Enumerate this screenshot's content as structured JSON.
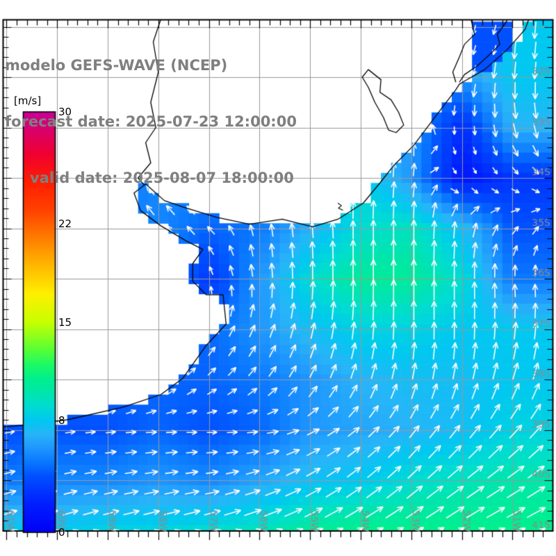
{
  "title": {
    "line1": "modelo GEFS-WAVE (NCEP)",
    "line2": "forecast date: 2025-07-23 12:00:00",
    "line3": "valid date: 2025-08-07 18:00:00"
  },
  "colorbar": {
    "unit_label": "[m/s]",
    "min": 0,
    "max": 30,
    "ticks": [
      {
        "value": 30,
        "label": "30"
      },
      {
        "value": 22,
        "label": "22"
      },
      {
        "value": 15,
        "label": "15"
      },
      {
        "value": 8,
        "label": "8"
      },
      {
        "value": 0,
        "label": "0"
      }
    ]
  },
  "axes": {
    "lat_labels": [
      {
        "lat": 32,
        "label": "32S"
      },
      {
        "lat": 33,
        "label": "33S"
      },
      {
        "lat": 34,
        "label": "34S"
      },
      {
        "lat": 35,
        "label": "35S"
      },
      {
        "lat": 36,
        "label": "36S"
      },
      {
        "lat": 37,
        "label": "37S"
      },
      {
        "lat": 38,
        "label": "38S"
      },
      {
        "lat": 39,
        "label": "39S"
      },
      {
        "lat": 40,
        "label": "40S"
      },
      {
        "lat": 41,
        "label": "41S"
      }
    ],
    "lon_labels": [
      {
        "lon": 61,
        "label": "61W"
      },
      {
        "lon": 60,
        "label": "60W"
      },
      {
        "lon": 59,
        "label": "59W"
      },
      {
        "lon": 58,
        "label": "58W"
      },
      {
        "lon": 57,
        "label": "57W"
      },
      {
        "lon": 56,
        "label": "56W"
      },
      {
        "lon": 55,
        "label": "55W"
      },
      {
        "lon": 54,
        "label": "54W"
      },
      {
        "lon": 53,
        "label": "53W"
      },
      {
        "lon": 52,
        "label": "52W"
      },
      {
        "lon": 51,
        "label": "51W"
      }
    ]
  },
  "chart_data": {
    "type": "heatmap",
    "subtype": "geographic-vector-field",
    "title": "modelo GEFS-WAVE (NCEP)",
    "value_units": "m/s",
    "colorbar_range": [
      0,
      30
    ],
    "colorbar_tick_values": [
      0,
      8,
      15,
      22,
      30
    ],
    "grid_lons_w": [
      61,
      60,
      59,
      58,
      57,
      56,
      55,
      54,
      53,
      52,
      51
    ],
    "grid_lats_s": [
      32,
      33,
      34,
      35,
      36,
      37,
      38,
      39,
      40,
      41
    ],
    "wave_values_ms": [
      [
        5,
        5,
        5,
        5,
        5,
        5,
        5,
        5,
        5,
        6,
        8
      ],
      [
        4,
        4,
        4,
        4,
        4,
        4,
        5,
        6,
        6,
        2.5,
        7
      ],
      [
        5,
        5,
        5,
        5.5,
        5.5,
        5,
        7,
        8.5,
        6,
        1.5,
        3
      ],
      [
        5,
        5,
        5,
        5.5,
        4.5,
        5,
        7,
        9,
        9.5,
        7.5,
        4
      ],
      [
        6,
        6,
        6,
        6,
        3,
        6,
        9,
        10.5,
        10.5,
        9,
        5
      ],
      [
        5,
        5,
        5,
        5,
        4.5,
        6,
        7.5,
        8.5,
        8.5,
        8,
        8
      ],
      [
        4.5,
        4.5,
        4.5,
        4.5,
        4.5,
        5,
        6,
        7,
        7.5,
        7.5,
        8
      ],
      [
        4,
        4,
        4,
        4.5,
        4,
        4.5,
        6,
        6.5,
        7,
        7.5,
        8.5
      ],
      [
        5,
        5.5,
        5.5,
        6,
        5.5,
        6.5,
        7.5,
        8,
        9,
        9.5,
        10
      ],
      [
        8,
        8,
        8.5,
        8.5,
        9,
        9.5,
        10.5,
        11,
        11,
        11,
        11
      ]
    ],
    "wave_dir_to_deg": [
      [
        195,
        195,
        195,
        195,
        195,
        195,
        195,
        195,
        200,
        195,
        185
      ],
      [
        0,
        0,
        0,
        0,
        0,
        0,
        0,
        0,
        355,
        180,
        168
      ],
      [
        0,
        0,
        0,
        315,
        320,
        350,
        0,
        5,
        5,
        150,
        135
      ],
      [
        330,
        330,
        330,
        320,
        315,
        350,
        355,
        0,
        0,
        5,
        40
      ],
      [
        350,
        350,
        350,
        345,
        340,
        355,
        0,
        0,
        0,
        0,
        355
      ],
      [
        25,
        25,
        25,
        28,
        30,
        22,
        12,
        5,
        0,
        0,
        5
      ],
      [
        45,
        45,
        46,
        48,
        50,
        42,
        30,
        20,
        12,
        12,
        18
      ],
      [
        80,
        82,
        85,
        88,
        90,
        85,
        65,
        50,
        38,
        38,
        42
      ],
      [
        75,
        76,
        78,
        80,
        80,
        72,
        60,
        52,
        48,
        52,
        56
      ],
      [
        72,
        72,
        74,
        75,
        73,
        70,
        66,
        62,
        60,
        62,
        64
      ]
    ],
    "colormap_stops": [
      [
        0,
        "#0000F5"
      ],
      [
        2,
        "#001EFF"
      ],
      [
        4,
        "#0050FF"
      ],
      [
        5,
        "#0A78FF"
      ],
      [
        6,
        "#1E96FF"
      ],
      [
        7,
        "#28B4F8"
      ],
      [
        8,
        "#00C8F0"
      ],
      [
        9,
        "#00DCD2"
      ],
      [
        10,
        "#00E6AA"
      ],
      [
        11,
        "#00F08C"
      ],
      [
        12,
        "#1EFA64"
      ],
      [
        13,
        "#55FF37"
      ],
      [
        15,
        "#C8FF00"
      ],
      [
        17,
        "#FFF000"
      ],
      [
        19,
        "#FFB900"
      ],
      [
        21,
        "#FF7D00"
      ],
      [
        23,
        "#FF4100"
      ],
      [
        25,
        "#FF1E00"
      ],
      [
        27,
        "#F00032"
      ],
      [
        28.5,
        "#DC0064"
      ],
      [
        30,
        "#C80096"
      ]
    ],
    "colors": {
      "land": "#ffffff",
      "grid": "#999999",
      "axis_label": "#8c8c8c",
      "title": "#7f7f7f",
      "arrow": "#ffffff",
      "coast": "#000000"
    }
  },
  "geo": {
    "coastline": [
      [
        50.55,
        30.5
      ],
      [
        50.75,
        31.05
      ],
      [
        51.1,
        31.45
      ],
      [
        51.55,
        31.85
      ],
      [
        51.95,
        32.08
      ],
      [
        52.05,
        32.14
      ],
      [
        52.12,
        32.25
      ],
      [
        52.5,
        32.75
      ],
      [
        52.95,
        33.35
      ],
      [
        53.37,
        33.78
      ],
      [
        53.62,
        34.1
      ],
      [
        53.95,
        34.5
      ],
      [
        54.45,
        34.82
      ],
      [
        54.95,
        34.97
      ],
      [
        55.55,
        34.82
      ],
      [
        56.2,
        34.92
      ],
      [
        56.85,
        34.78
      ],
      [
        57.5,
        34.58
      ],
      [
        57.88,
        34.45
      ],
      [
        58.25,
        34.12
      ],
      [
        58.48,
        34.3
      ],
      [
        58.35,
        34.65
      ],
      [
        57.95,
        34.95
      ],
      [
        57.45,
        35.25
      ],
      [
        57.12,
        35.42
      ],
      [
        57.32,
        35.7
      ],
      [
        57.32,
        36.05
      ],
      [
        57.05,
        36.32
      ],
      [
        56.72,
        36.32
      ],
      [
        56.66,
        36.9
      ],
      [
        57.05,
        37.32
      ],
      [
        57.52,
        37.98
      ],
      [
        57.95,
        38.3
      ],
      [
        58.7,
        38.55
      ],
      [
        59.8,
        38.8
      ],
      [
        60.6,
        38.9
      ],
      [
        61.5,
        38.98
      ]
    ],
    "rio_uruguay": [
      [
        57.9,
        30.7
      ],
      [
        58.1,
        31.3
      ],
      [
        58.0,
        31.9
      ],
      [
        58.15,
        32.5
      ],
      [
        58.05,
        33.0
      ],
      [
        58.25,
        33.3
      ],
      [
        58.15,
        33.7
      ],
      [
        58.4,
        34.0
      ],
      [
        58.28,
        34.14
      ]
    ],
    "lagoa_patos_east_shore": [
      [
        51.0,
        30.55
      ],
      [
        51.12,
        30.9
      ],
      [
        51.3,
        31.15
      ],
      [
        51.25,
        31.35
      ],
      [
        51.45,
        31.55
      ],
      [
        51.7,
        31.78
      ],
      [
        51.95,
        31.95
      ],
      [
        52.05,
        32.1
      ]
    ],
    "lagoa_patos_west_shore": [
      [
        51.72,
        30.55
      ],
      [
        51.82,
        30.85
      ],
      [
        51.75,
        31.15
      ],
      [
        51.95,
        31.35
      ],
      [
        52.05,
        31.6
      ],
      [
        52.18,
        31.9
      ],
      [
        52.12,
        32.1
      ]
    ],
    "lagoa_mirim": [
      [
        53.85,
        31.85
      ],
      [
        53.6,
        32.05
      ],
      [
        53.62,
        32.3
      ],
      [
        53.4,
        32.45
      ],
      [
        53.25,
        32.7
      ],
      [
        53.15,
        32.95
      ],
      [
        53.3,
        33.1
      ],
      [
        53.45,
        33.05
      ],
      [
        53.55,
        32.8
      ],
      [
        53.72,
        32.5
      ],
      [
        53.85,
        32.2
      ],
      [
        53.97,
        32.0
      ],
      [
        53.85,
        31.85
      ]
    ],
    "small_island": [
      [
        54.45,
        34.5
      ],
      [
        54.38,
        34.55
      ],
      [
        54.44,
        34.6
      ],
      [
        54.35,
        34.64
      ]
    ],
    "lagoon_water_rect": {
      "lon_east": 51.05,
      "lon_west": 51.9,
      "lat_north": 30.8,
      "lat_south": 31.9,
      "value": 4,
      "dir": 195
    }
  }
}
